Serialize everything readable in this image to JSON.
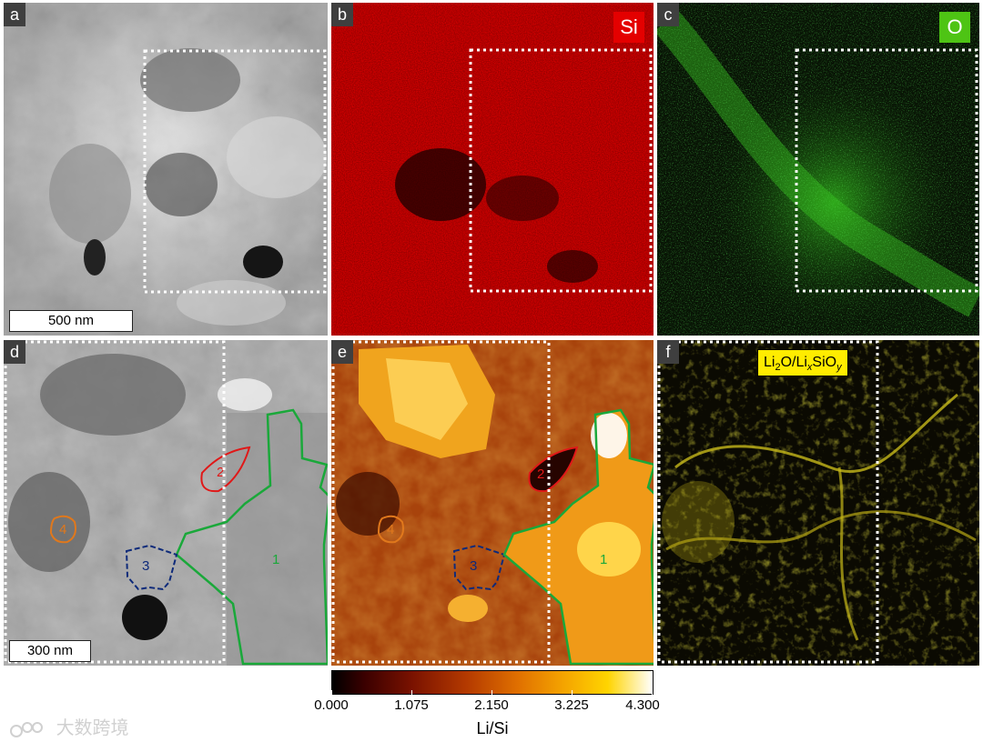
{
  "panels": {
    "a": {
      "label": "a",
      "scalebar": "500 nm"
    },
    "b": {
      "label": "b",
      "element": "Si"
    },
    "c": {
      "label": "c",
      "element": "O"
    },
    "d": {
      "label": "d",
      "scalebar": "300 nm",
      "regions": [
        "1",
        "2",
        "3",
        "4"
      ]
    },
    "e": {
      "label": "e",
      "regions": [
        "1",
        "2",
        "3",
        "4"
      ]
    },
    "f": {
      "label": "f",
      "phase": {
        "a": "Li",
        "b": "2",
        "c": "O/Li",
        "d": "x",
        "e": "SiO",
        "f": "y"
      }
    }
  },
  "colorbar": {
    "title": "Li/Si",
    "ticks": [
      "0.000",
      "1.075",
      "2.150",
      "3.225",
      "4.300"
    ]
  },
  "watermark": "大数跨境",
  "colors": {
    "si_map": "#e40000",
    "o_map": "#4ec414",
    "phase_badge": "#ffec00",
    "region1": "#1aa83a",
    "region2": "#e01818",
    "region3": "#0e2a7a",
    "region4": "#e0781c"
  },
  "icons": [
    "watermark-logo-icon"
  ]
}
